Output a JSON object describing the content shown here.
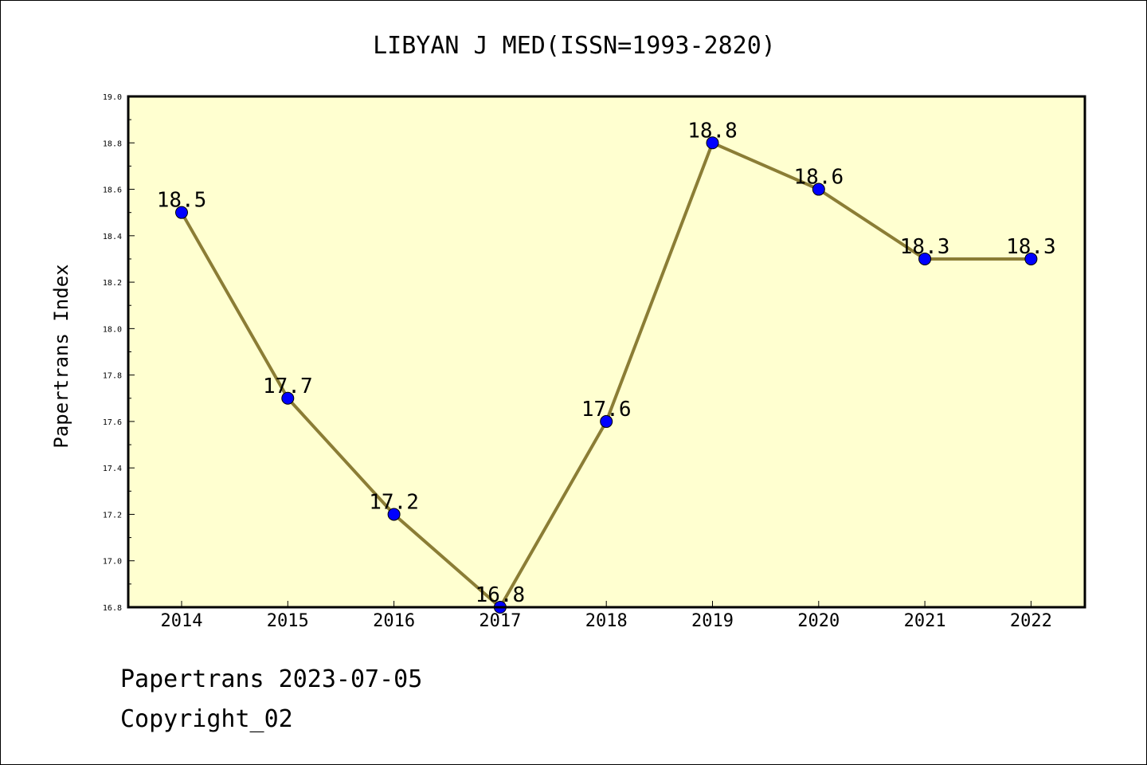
{
  "chart_data": {
    "type": "line",
    "title": "LIBYAN J MED(ISSN=1993-2820)",
    "xlabel": "",
    "ylabel": "Papertrans Index",
    "categories": [
      "2014",
      "2015",
      "2016",
      "2017",
      "2018",
      "2019",
      "2020",
      "2021",
      "2022"
    ],
    "values": [
      18.5,
      17.7,
      17.2,
      16.8,
      17.6,
      18.8,
      18.6,
      18.3,
      18.3
    ],
    "value_labels": [
      "18.5",
      "17.7",
      "17.2",
      "16.8",
      "17.6",
      "18.8",
      "18.6",
      "18.3",
      "18.3"
    ],
    "ylim": [
      16.8,
      19.0
    ],
    "yticks": [
      "16.8",
      "17.0",
      "17.2",
      "17.4",
      "17.6",
      "17.8",
      "18.0",
      "18.2",
      "18.4",
      "18.6",
      "18.8",
      "19.0"
    ],
    "grid": false,
    "colors": {
      "plot_background": "#ffffd0",
      "line": "#8b7d35",
      "marker": "#0000ff"
    }
  },
  "footer": {
    "line1": "Papertrans 2023-07-05",
    "line2": "Copyright_02"
  }
}
